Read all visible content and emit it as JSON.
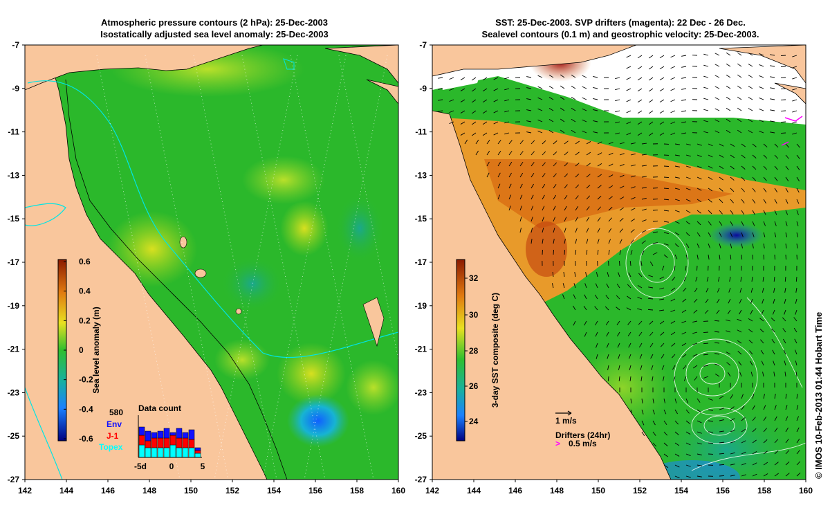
{
  "left_panel": {
    "title_line1": "Atmospheric pressure contours (2 hPa): 25-Dec-2003",
    "title_line2": "Isostatically adjusted sea level anomaly: 25-Dec-2003",
    "colorbar_label": "Sea level anomaly (m)",
    "colorbar_ticks": [
      "0.6",
      "0.4",
      "0.2",
      "0",
      "-0.2",
      "-0.4",
      "-0.6"
    ],
    "data_count": {
      "title": "Data count",
      "max_label": "580",
      "legend": [
        {
          "name": "Env",
          "color": "#1010ff"
        },
        {
          "name": "J-1",
          "color": "#ff0000"
        },
        {
          "name": "Topex",
          "color": "#00ffff"
        }
      ],
      "xticks": [
        "-5d",
        "0",
        "5"
      ]
    }
  },
  "right_panel": {
    "title_line1": "SST: 25-Dec-2003. SVP drifters (magenta): 22 Dec - 26 Dec.",
    "title_line2": "Sealevel contours (0.1 m) and geostrophic velocity: 25-Dec-2003.",
    "colorbar_label": "3-day SST composite (deg C)",
    "colorbar_ticks": [
      "32",
      "30",
      "28",
      "26",
      "24"
    ],
    "scale_label": "1 m/s",
    "drifter_title": "Drifters (24hr)",
    "drifter_scale": "0.5 m/s"
  },
  "axes": {
    "xticks": [
      "142",
      "144",
      "146",
      "148",
      "150",
      "152",
      "154",
      "156",
      "158",
      "160"
    ],
    "yticks": [
      "-7",
      "-9",
      "-11",
      "-13",
      "-15",
      "-17",
      "-19",
      "-21",
      "-23",
      "-25",
      "-27"
    ]
  },
  "credit": "© IMOS 10-Feb-2013 01:44 Hobart Time",
  "colors": {
    "land": "#f9c69c",
    "sla_green": "#2bb82b",
    "sst_orange": "#e89a2a",
    "drifter": "#ff00ff",
    "coast": "#000000",
    "pressure_contour": "#00e5e5"
  }
}
